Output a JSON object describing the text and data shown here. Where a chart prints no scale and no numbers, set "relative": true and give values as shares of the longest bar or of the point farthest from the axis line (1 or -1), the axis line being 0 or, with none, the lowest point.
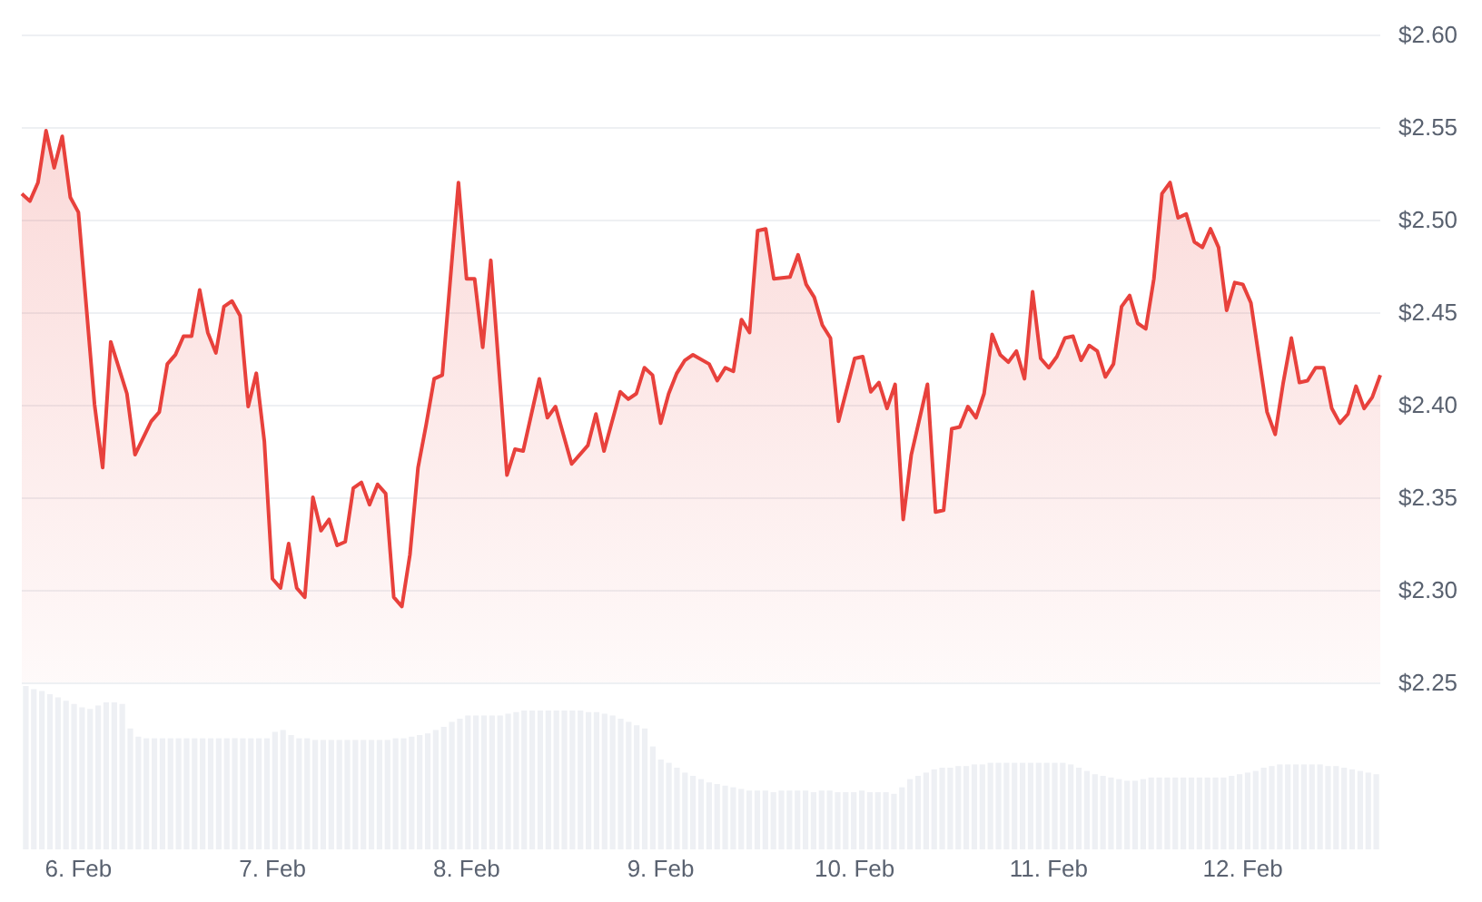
{
  "chart_data": [
    {
      "type": "area",
      "color": "#e8413c",
      "marker": "none",
      "grid": "y",
      "x": [
        "--02-05T17:00",
        "--02-05T18:00",
        "--02-05T19:00",
        "--02-05T20:00",
        "--02-05T21:00",
        "--02-05T22:00",
        "--02-05T23:00",
        "--02-06T00:00",
        "--02-06T02:00",
        "--02-06T03:00",
        "--02-06T04:00",
        "--02-06T06:00",
        "--02-06T07:00",
        "--02-06T09:00",
        "--02-06T10:00",
        "--02-06T11:00",
        "--02-06T12:00",
        "--02-06T13:00",
        "--02-06T14:00",
        "--02-06T15:00",
        "--02-06T16:00",
        "--02-06T17:00",
        "--02-06T18:00",
        "--02-06T19:00",
        "--02-06T20:00",
        "--02-06T21:00",
        "--02-06T22:00",
        "--02-06T23:00",
        "--02-07T00:00",
        "--02-07T01:00",
        "--02-07T02:00",
        "--02-07T03:00",
        "--02-07T04:00",
        "--02-07T05:00",
        "--02-07T06:00",
        "--02-07T07:00",
        "--02-07T08:00",
        "--02-07T09:00",
        "--02-07T10:00",
        "--02-07T11:00",
        "--02-07T12:00",
        "--02-07T13:00",
        "--02-07T14:00",
        "--02-07T15:00",
        "--02-07T16:00",
        "--02-07T17:00",
        "--02-07T18:00",
        "--02-07T19:00",
        "--02-07T20:00",
        "--02-07T21:00",
        "--02-07T23:00",
        "--02-08T00:00",
        "--02-08T01:00",
        "--02-08T02:00",
        "--02-08T03:00",
        "--02-08T05:00",
        "--02-08T06:00",
        "--02-08T07:00",
        "--02-08T09:00",
        "--02-08T10:00",
        "--02-08T11:00",
        "--02-08T13:00",
        "--02-08T15:00",
        "--02-08T16:00",
        "--02-08T17:00",
        "--02-08T19:00",
        "--02-08T20:00",
        "--02-08T21:00",
        "--02-08T22:00",
        "--02-08T23:00",
        "--02-09T00:00",
        "--02-09T01:00",
        "--02-09T02:00",
        "--02-09T03:00",
        "--02-09T04:00",
        "--02-09T06:00",
        "--02-09T07:00",
        "--02-09T08:00",
        "--02-09T09:00",
        "--02-09T10:00",
        "--02-09T11:00",
        "--02-09T12:00",
        "--02-09T13:00",
        "--02-09T14:00",
        "--02-09T16:00",
        "--02-09T17:00",
        "--02-09T18:00",
        "--02-09T19:00",
        "--02-09T20:00",
        "--02-09T21:00",
        "--02-09T22:00",
        "--02-10T00:00",
        "--02-10T01:00",
        "--02-10T02:00",
        "--02-10T03:00",
        "--02-10T04:00",
        "--02-10T05:00",
        "--02-10T06:00",
        "--02-10T07:00",
        "--02-10T09:00",
        "--02-10T10:00",
        "--02-10T11:00",
        "--02-10T12:00",
        "--02-10T13:00",
        "--02-10T14:00",
        "--02-10T15:00",
        "--02-10T16:00",
        "--02-10T17:00",
        "--02-10T18:00",
        "--02-10T19:00",
        "--02-10T20:00",
        "--02-10T21:00",
        "--02-10T22:00",
        "--02-10T23:00",
        "--02-11T00:00",
        "--02-11T01:00",
        "--02-11T02:00",
        "--02-11T03:00",
        "--02-11T04:00",
        "--02-11T05:00",
        "--02-11T06:00",
        "--02-11T07:00",
        "--02-11T08:00",
        "--02-11T09:00",
        "--02-11T10:00",
        "--02-11T11:00",
        "--02-11T12:00",
        "--02-11T13:00",
        "--02-11T14:00",
        "--02-11T15:00",
        "--02-11T16:00",
        "--02-11T17:00",
        "--02-11T18:00",
        "--02-11T19:00",
        "--02-11T20:00",
        "--02-11T21:00",
        "--02-11T22:00",
        "--02-11T23:00",
        "--02-12T00:00",
        "--02-12T01:00",
        "--02-12T03:00",
        "--02-12T04:00",
        "--02-12T05:00",
        "--02-12T06:00",
        "--02-12T07:00",
        "--02-12T08:00",
        "--02-12T09:00",
        "--02-12T10:00",
        "--02-12T11:00",
        "--02-12T12:00",
        "--02-12T13:00",
        "--02-12T14:00",
        "--02-12T15:00",
        "--02-12T16:00",
        "--02-12T17:00"
      ],
      "values": [
        2.514,
        2.51,
        2.52,
        2.548,
        2.528,
        2.545,
        2.512,
        2.504,
        2.4,
        2.366,
        2.434,
        2.406,
        2.373,
        2.391,
        2.396,
        2.422,
        2.427,
        2.437,
        2.437,
        2.462,
        2.439,
        2.428,
        2.453,
        2.456,
        2.448,
        2.399,
        2.417,
        2.38,
        2.306,
        2.301,
        2.325,
        2.301,
        2.296,
        2.35,
        2.332,
        2.338,
        2.324,
        2.326,
        2.355,
        2.358,
        2.346,
        2.357,
        2.352,
        2.296,
        2.291,
        2.319,
        2.366,
        2.389,
        2.414,
        2.416,
        2.52,
        2.468,
        2.468,
        2.431,
        2.478,
        2.362,
        2.376,
        2.375,
        2.414,
        2.393,
        2.399,
        2.368,
        2.378,
        2.395,
        2.375,
        2.407,
        2.403,
        2.406,
        2.42,
        2.416,
        2.39,
        2.406,
        2.417,
        2.424,
        2.427,
        2.422,
        2.413,
        2.42,
        2.418,
        2.446,
        2.439,
        2.494,
        2.495,
        2.468,
        2.469,
        2.481,
        2.465,
        2.458,
        2.443,
        2.436,
        2.391,
        2.425,
        2.426,
        2.407,
        2.412,
        2.398,
        2.411,
        2.338,
        2.373,
        2.411,
        2.342,
        2.343,
        2.387,
        2.388,
        2.399,
        2.393,
        2.406,
        2.438,
        2.427,
        2.423,
        2.429,
        2.414,
        2.461,
        2.425,
        2.42,
        2.426,
        2.436,
        2.437,
        2.424,
        2.432,
        2.429,
        2.415,
        2.422,
        2.453,
        2.459,
        2.444,
        2.441,
        2.468,
        2.514,
        2.52,
        2.501,
        2.503,
        2.488,
        2.485,
        2.495,
        2.485,
        2.451,
        2.466,
        2.465,
        2.455,
        2.396,
        2.384,
        2.412,
        2.436,
        2.412,
        2.413,
        2.42,
        2.42,
        2.398,
        2.39,
        2.395,
        2.41,
        2.398,
        2.404,
        2.416
      ],
      "xlim": [
        "--02-05T17:00",
        "--02-12T17:00"
      ],
      "xticks": [
        {
          "value": "--02-06",
          "label": "6. Feb"
        },
        {
          "value": "--02-07",
          "label": "7. Feb"
        },
        {
          "value": "--02-08",
          "label": "8. Feb"
        },
        {
          "value": "--02-09",
          "label": "9. Feb"
        },
        {
          "value": "--02-10",
          "label": "10. Feb"
        },
        {
          "value": "--02-11",
          "label": "11. Feb"
        },
        {
          "value": "--02-12",
          "label": "12. Feb"
        }
      ],
      "ylim": [
        2.25,
        2.6
      ],
      "yticks": [
        {
          "value": 2.25,
          "label": "$2.25"
        },
        {
          "value": 2.3,
          "label": "$2.30"
        },
        {
          "value": 2.35,
          "label": "$2.35"
        },
        {
          "value": 2.4,
          "label": "$2.40"
        },
        {
          "value": 2.45,
          "label": "$2.45"
        },
        {
          "value": 2.5,
          "label": "$2.50"
        },
        {
          "value": 2.55,
          "label": "$2.55"
        },
        {
          "value": 2.6,
          "label": "$2.60"
        }
      ]
    },
    {
      "type": "bar",
      "relative": true,
      "color": "#eef0f4",
      "categories": [
        null,
        null,
        null,
        null,
        null,
        null,
        null,
        null,
        null,
        null,
        null,
        null,
        null,
        null,
        null,
        null,
        null,
        null,
        null,
        null,
        null,
        null,
        null,
        null,
        null,
        null,
        null,
        null,
        null,
        null,
        null,
        null,
        null,
        null,
        null,
        null,
        null,
        null,
        null,
        null,
        null,
        null,
        null,
        null,
        null,
        null,
        null,
        null,
        null,
        null,
        null,
        null,
        null,
        null,
        null,
        null,
        null,
        null,
        null,
        null,
        null,
        null,
        null,
        null,
        null,
        null,
        null,
        null,
        null,
        null,
        null,
        null,
        null,
        null,
        null,
        null,
        null,
        null,
        null,
        null,
        null,
        null,
        null,
        null,
        null,
        null,
        null,
        null,
        null,
        null,
        null,
        null,
        null,
        null,
        null,
        null,
        null,
        null,
        null,
        null,
        null,
        null,
        null,
        null,
        null,
        null,
        null,
        null,
        null,
        null,
        null,
        null,
        null,
        null,
        null,
        null,
        null,
        null,
        null,
        null,
        null,
        null,
        null,
        null,
        null,
        null,
        null,
        null,
        null,
        null,
        null,
        null,
        null,
        null,
        null,
        null,
        null,
        null,
        null,
        null,
        null,
        null,
        null,
        null,
        null,
        null,
        null,
        null,
        null,
        null,
        null,
        null,
        null,
        null,
        null,
        null,
        null,
        null,
        null,
        null,
        null,
        null,
        null,
        null,
        null,
        null,
        null,
        null,
        null
      ],
      "values": [
        1.0,
        0.98,
        0.97,
        0.95,
        0.93,
        0.91,
        0.89,
        0.87,
        0.86,
        0.88,
        0.9,
        0.9,
        0.89,
        0.74,
        0.69,
        0.68,
        0.68,
        0.68,
        0.68,
        0.68,
        0.68,
        0.68,
        0.68,
        0.68,
        0.68,
        0.68,
        0.68,
        0.68,
        0.68,
        0.68,
        0.68,
        0.72,
        0.73,
        0.7,
        0.68,
        0.68,
        0.67,
        0.67,
        0.67,
        0.67,
        0.67,
        0.67,
        0.67,
        0.67,
        0.67,
        0.67,
        0.68,
        0.68,
        0.69,
        0.7,
        0.71,
        0.73,
        0.75,
        0.78,
        0.8,
        0.82,
        0.82,
        0.82,
        0.82,
        0.82,
        0.83,
        0.84,
        0.85,
        0.85,
        0.85,
        0.85,
        0.85,
        0.85,
        0.85,
        0.85,
        0.84,
        0.84,
        0.83,
        0.82,
        0.8,
        0.78,
        0.76,
        0.74,
        0.63,
        0.55,
        0.53,
        0.5,
        0.47,
        0.45,
        0.43,
        0.41,
        0.4,
        0.39,
        0.38,
        0.37,
        0.36,
        0.36,
        0.36,
        0.35,
        0.36,
        0.36,
        0.36,
        0.36,
        0.35,
        0.36,
        0.36,
        0.35,
        0.35,
        0.35,
        0.36,
        0.35,
        0.35,
        0.35,
        0.34,
        0.38,
        0.43,
        0.45,
        0.47,
        0.49,
        0.5,
        0.5,
        0.51,
        0.51,
        0.52,
        0.52,
        0.53,
        0.53,
        0.53,
        0.53,
        0.53,
        0.53,
        0.53,
        0.53,
        0.53,
        0.53,
        0.52,
        0.5,
        0.48,
        0.46,
        0.45,
        0.44,
        0.43,
        0.42,
        0.42,
        0.43,
        0.44,
        0.44,
        0.44,
        0.44,
        0.44,
        0.44,
        0.44,
        0.44,
        0.44,
        0.44,
        0.45,
        0.46,
        0.47,
        0.48,
        0.5,
        0.51,
        0.52,
        0.52,
        0.52,
        0.52,
        0.52,
        0.52,
        0.51,
        0.51,
        0.5,
        0.49,
        0.48,
        0.47,
        0.46
      ]
    }
  ]
}
